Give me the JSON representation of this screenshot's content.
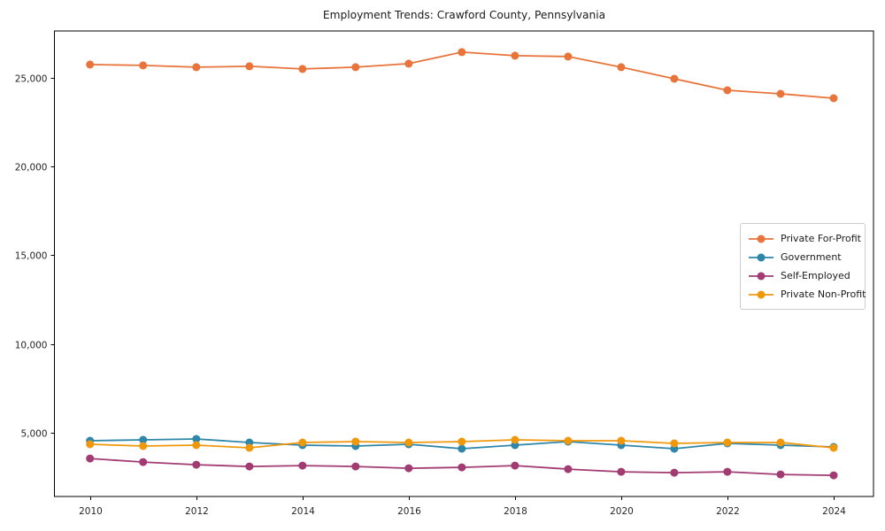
{
  "chart_data": {
    "type": "line",
    "title": "Employment Trends: Crawford County, Pennsylvania",
    "x": [
      2010,
      2011,
      2012,
      2013,
      2014,
      2015,
      2016,
      2017,
      2018,
      2019,
      2020,
      2021,
      2022,
      2023,
      2024
    ],
    "series": [
      {
        "name": "Private For-Profit",
        "color": "#E8743B",
        "values": [
          25750,
          25700,
          25600,
          25650,
          25500,
          25600,
          25800,
          26450,
          26250,
          26200,
          25600,
          24950,
          24300,
          24100,
          23850
        ]
      },
      {
        "name": "Government",
        "color": "#2E86A8",
        "values": [
          4550,
          4600,
          4650,
          4450,
          4300,
          4250,
          4350,
          4100,
          4300,
          4500,
          4300,
          4100,
          4400,
          4300,
          4200
        ]
      },
      {
        "name": "Self-Employed",
        "color": "#A23B72",
        "values": [
          3550,
          3350,
          3200,
          3100,
          3150,
          3100,
          3000,
          3050,
          3150,
          2950,
          2800,
          2750,
          2800,
          2650,
          2600
        ]
      },
      {
        "name": "Private Non-Profit",
        "color": "#F0980B",
        "values": [
          4350,
          4250,
          4300,
          4150,
          4450,
          4500,
          4450,
          4500,
          4600,
          4550,
          4550,
          4400,
          4450,
          4450,
          4150
        ]
      }
    ],
    "xticks": [
      2010,
      2012,
      2014,
      2016,
      2018,
      2020,
      2022,
      2024
    ],
    "yticks": [
      5000,
      10000,
      15000,
      20000,
      25000
    ],
    "ytick_labels": [
      "5,000",
      "10,000",
      "15,000",
      "20,000",
      "25,000"
    ],
    "xlim": [
      2009.33,
      2024.75
    ],
    "ylim": [
      1408,
      27642
    ],
    "grid": false,
    "legend_position": "center right",
    "axis_color": "#000000",
    "text_color": "#262626"
  }
}
